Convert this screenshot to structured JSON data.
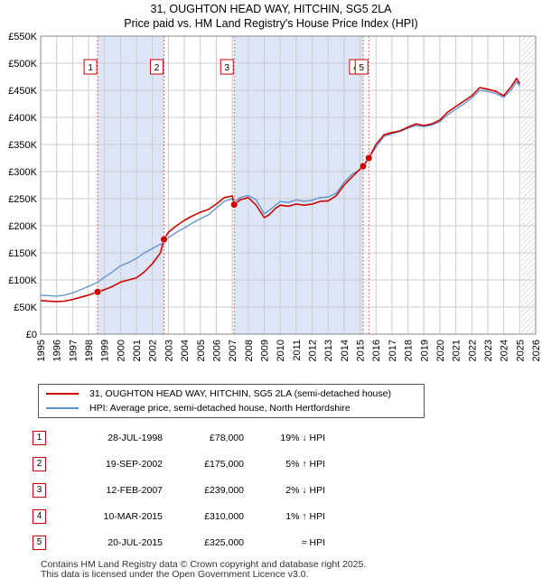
{
  "header": {
    "title": "31, OUGHTON HEAD WAY, HITCHIN, SG5 2LA",
    "subtitle": "Price paid vs. HM Land Registry's House Price Index (HPI)"
  },
  "legend": {
    "items": [
      {
        "label": "31, OUGHTON HEAD WAY, HITCHIN, SG5 2LA (semi-detached house)",
        "color": "#cc0000"
      },
      {
        "label": "HPI: Average price, semi-detached house, North Hertfordshire",
        "color": "#5b8fd0"
      }
    ]
  },
  "sales": [
    {
      "num": "1",
      "date": "28-JUL-1998",
      "price": "£78,000",
      "hpi": "19% ↓ HPI"
    },
    {
      "num": "2",
      "date": "19-SEP-2002",
      "price": "£175,000",
      "hpi": "5% ↑ HPI"
    },
    {
      "num": "3",
      "date": "12-FEB-2007",
      "price": "£239,000",
      "hpi": "2% ↓ HPI"
    },
    {
      "num": "4",
      "date": "10-MAR-2015",
      "price": "£310,000",
      "hpi": "1% ↑ HPI"
    },
    {
      "num": "5",
      "date": "20-JUL-2015",
      "price": "£325,000",
      "hpi": "≈ HPI"
    }
  ],
  "footer": {
    "line1": "Contains HM Land Registry data © Crown copyright and database right 2025.",
    "line2": "This data is licensed under the Open Government Licence v3.0."
  },
  "colors": {
    "price_line": "#cc0000",
    "hpi_line": "#5b8fd0",
    "shade": "#dde6f6",
    "marker_line": "#e06666",
    "grid": "#cccccc"
  },
  "chart_data": {
    "type": "line",
    "xlim": [
      1995,
      2026
    ],
    "ylim": [
      0,
      550000
    ],
    "x_ticks": [
      "1995",
      "1996",
      "1997",
      "1998",
      "1999",
      "2000",
      "2001",
      "2002",
      "2003",
      "2004",
      "2005",
      "2006",
      "2007",
      "2008",
      "2009",
      "2010",
      "2011",
      "2012",
      "2013",
      "2014",
      "2015",
      "2016",
      "2017",
      "2018",
      "2019",
      "2020",
      "2021",
      "2022",
      "2023",
      "2024",
      "2025",
      "2026"
    ],
    "y_ticks": [
      {
        "value": 0,
        "label": "£0"
      },
      {
        "value": 50000,
        "label": "£50K"
      },
      {
        "value": 100000,
        "label": "£100K"
      },
      {
        "value": 150000,
        "label": "£150K"
      },
      {
        "value": 200000,
        "label": "£200K"
      },
      {
        "value": 250000,
        "label": "£250K"
      },
      {
        "value": 300000,
        "label": "£300K"
      },
      {
        "value": 350000,
        "label": "£350K"
      },
      {
        "value": 400000,
        "label": "£400K"
      },
      {
        "value": 450000,
        "label": "£450K"
      },
      {
        "value": 500000,
        "label": "£500K"
      },
      {
        "value": 550000,
        "label": "£550K"
      }
    ],
    "grid": true,
    "shaded_periods": [
      [
        1998.57,
        2002.72
      ],
      [
        2007.12,
        2015.19
      ]
    ],
    "future_hatch_from": 2025.1,
    "sale_markers": [
      {
        "label": "1",
        "x": 1998.57,
        "y": 78000
      },
      {
        "label": "2",
        "x": 2002.72,
        "y": 175000
      },
      {
        "label": "3",
        "x": 2007.12,
        "y": 239000
      },
      {
        "label": "4",
        "x": 2015.19,
        "y": 310000
      },
      {
        "label": "5",
        "x": 2015.55,
        "y": 325000
      }
    ],
    "series": [
      {
        "name": "31, OUGHTON HEAD WAY, HITCHIN, SG5 2LA (semi-detached house)",
        "x": [
          1995.0,
          1995.5,
          1996.0,
          1996.5,
          1997.0,
          1997.5,
          1998.0,
          1998.57,
          1999.0,
          1999.5,
          2000.0,
          2000.5,
          2001.0,
          2001.5,
          2002.0,
          2002.5,
          2002.72,
          2003.0,
          2003.5,
          2004.0,
          2004.5,
          2005.0,
          2005.5,
          2006.0,
          2006.5,
          2007.0,
          2007.12,
          2007.5,
          2008.0,
          2008.5,
          2009.0,
          2009.3,
          2009.7,
          2010.0,
          2010.5,
          2011.0,
          2011.5,
          2012.0,
          2012.5,
          2013.0,
          2013.5,
          2014.0,
          2014.5,
          2015.19,
          2015.55,
          2016.0,
          2016.5,
          2017.0,
          2017.5,
          2018.0,
          2018.5,
          2019.0,
          2019.5,
          2020.0,
          2020.5,
          2021.0,
          2021.5,
          2022.0,
          2022.5,
          2023.0,
          2023.5,
          2024.0,
          2024.5,
          2024.8,
          2025.0
        ],
        "y": [
          62000,
          61000,
          60000,
          61000,
          64000,
          68000,
          72000,
          78000,
          82000,
          88000,
          96000,
          100000,
          104000,
          115000,
          130000,
          150000,
          175000,
          188000,
          200000,
          210000,
          218000,
          225000,
          230000,
          240000,
          252000,
          255000,
          239000,
          248000,
          252000,
          238000,
          215000,
          220000,
          232000,
          238000,
          236000,
          240000,
          238000,
          240000,
          245000,
          246000,
          255000,
          275000,
          290000,
          310000,
          325000,
          350000,
          368000,
          372000,
          375000,
          382000,
          388000,
          385000,
          388000,
          395000,
          410000,
          420000,
          430000,
          440000,
          455000,
          452000,
          448000,
          440000,
          458000,
          472000,
          462000
        ]
      },
      {
        "name": "HPI: Average price, semi-detached house, North Hertfordshire",
        "x": [
          1995.0,
          1995.5,
          1996.0,
          1996.5,
          1997.0,
          1997.5,
          1998.0,
          1998.57,
          1999.0,
          1999.5,
          2000.0,
          2000.5,
          2001.0,
          2001.5,
          2002.0,
          2002.5,
          2002.72,
          2003.0,
          2003.5,
          2004.0,
          2004.5,
          2005.0,
          2005.5,
          2006.0,
          2006.5,
          2007.0,
          2007.12,
          2007.5,
          2008.0,
          2008.5,
          2009.0,
          2009.3,
          2009.7,
          2010.0,
          2010.5,
          2011.0,
          2011.5,
          2012.0,
          2012.5,
          2013.0,
          2013.5,
          2014.0,
          2014.5,
          2015.19,
          2015.55,
          2016.0,
          2016.5,
          2017.0,
          2017.5,
          2018.0,
          2018.5,
          2019.0,
          2019.5,
          2020.0,
          2020.5,
          2021.0,
          2021.5,
          2022.0,
          2022.5,
          2023.0,
          2023.5,
          2024.0,
          2024.5,
          2024.8,
          2025.0
        ],
        "y": [
          72000,
          71000,
          70000,
          72000,
          76000,
          82000,
          88000,
          96000,
          105000,
          115000,
          126000,
          132000,
          140000,
          150000,
          158000,
          166000,
          167000,
          178000,
          188000,
          196000,
          205000,
          213000,
          220000,
          233000,
          245000,
          250000,
          244000,
          252000,
          256000,
          248000,
          222000,
          228000,
          238000,
          245000,
          243000,
          248000,
          245000,
          247000,
          252000,
          253000,
          260000,
          280000,
          295000,
          307000,
          325000,
          345000,
          365000,
          370000,
          374000,
          380000,
          385000,
          383000,
          386000,
          392000,
          405000,
          415000,
          425000,
          436000,
          450000,
          448000,
          444000,
          437000,
          452000,
          466000,
          458000
        ]
      }
    ]
  }
}
